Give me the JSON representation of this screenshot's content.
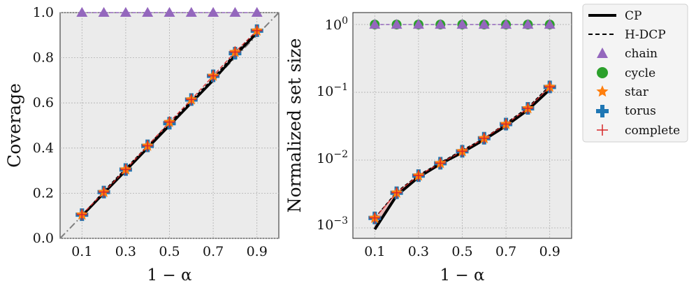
{
  "chart_data": [
    {
      "type": "line",
      "panel": "left",
      "xlabel": "1 − α",
      "ylabel": "Coverage",
      "xlim": [
        0.0,
        1.0
      ],
      "ylim": [
        0.0,
        1.0
      ],
      "xticks": [
        "0.1",
        "0.3",
        "0.5",
        "0.7",
        "0.9"
      ],
      "yticks": [
        "0.0",
        "0.2",
        "0.4",
        "0.6",
        "0.8",
        "1.0"
      ],
      "grid": true,
      "diagonal_reference": true,
      "x": [
        0.1,
        0.2,
        0.3,
        0.4,
        0.5,
        0.6,
        0.7,
        0.8,
        0.9
      ],
      "series": [
        {
          "name": "CP (chain)",
          "values": [
            1,
            1,
            1,
            1,
            1,
            1,
            1,
            1,
            1
          ]
        },
        {
          "name": "CP",
          "values": [
            0.1,
            0.2,
            0.3,
            0.4,
            0.5,
            0.6,
            0.7,
            0.81,
            0.91
          ]
        },
        {
          "name": "H-DCP",
          "values": [
            0.1,
            0.21,
            0.31,
            0.41,
            0.51,
            0.61,
            0.71,
            0.82,
            0.92
          ]
        },
        {
          "name": "chain",
          "values": [
            1,
            1,
            1,
            1,
            1,
            1,
            1,
            1,
            1
          ]
        },
        {
          "name": "star",
          "values": [
            0.105,
            0.205,
            0.305,
            0.41,
            0.515,
            0.615,
            0.72,
            0.825,
            0.92
          ]
        },
        {
          "name": "torus",
          "values": [
            0.105,
            0.205,
            0.305,
            0.41,
            0.51,
            0.615,
            0.72,
            0.82,
            0.92
          ]
        },
        {
          "name": "complete",
          "values": [
            0.105,
            0.205,
            0.305,
            0.41,
            0.515,
            0.615,
            0.72,
            0.825,
            0.92
          ]
        }
      ]
    },
    {
      "type": "line",
      "panel": "right",
      "xlabel": "1 − α",
      "ylabel": "Normalized set size",
      "yscale": "log",
      "xlim": [
        0.0,
        1.0
      ],
      "ylim": [
        0.0007,
        1.5
      ],
      "xticks": [
        "0.1",
        "0.3",
        "0.5",
        "0.7",
        "0.9"
      ],
      "yticks": [
        "10^0",
        "10^-1",
        "10^-2",
        "10^-3"
      ],
      "grid": true,
      "x": [
        0.1,
        0.2,
        0.3,
        0.4,
        0.5,
        0.6,
        0.7,
        0.8,
        0.9
      ],
      "series": [
        {
          "name": "CP",
          "values": [
            0.00095,
            0.003,
            0.0056,
            0.0088,
            0.013,
            0.02,
            0.032,
            0.055,
            0.11
          ]
        },
        {
          "name": "H-DCP",
          "values": [
            0.0014,
            0.0034,
            0.006,
            0.0092,
            0.014,
            0.021,
            0.035,
            0.06,
            0.125
          ]
        },
        {
          "name": "chain",
          "values": [
            1,
            1,
            1,
            1,
            1,
            1,
            1,
            1,
            1
          ]
        },
        {
          "name": "cycle",
          "values": [
            1,
            1,
            1,
            1,
            1,
            1,
            1,
            1,
            1
          ]
        },
        {
          "name": "star",
          "values": [
            0.0014,
            0.0033,
            0.0059,
            0.009,
            0.0135,
            0.021,
            0.034,
            0.058,
            0.12
          ]
        },
        {
          "name": "torus",
          "values": [
            0.0014,
            0.0033,
            0.0059,
            0.009,
            0.0135,
            0.021,
            0.034,
            0.058,
            0.12
          ]
        },
        {
          "name": "complete",
          "values": [
            0.0014,
            0.0033,
            0.0059,
            0.009,
            0.0135,
            0.021,
            0.034,
            0.058,
            0.12
          ]
        }
      ]
    }
  ],
  "legend": {
    "placement": "right",
    "entries": [
      {
        "label": "CP",
        "style": "line-solid"
      },
      {
        "label": "H-DCP",
        "style": "line-dashed"
      },
      {
        "label": "chain",
        "style": "triangle"
      },
      {
        "label": "cycle",
        "style": "circle"
      },
      {
        "label": "star",
        "style": "star"
      },
      {
        "label": "torus",
        "style": "plus-thick"
      },
      {
        "label": "complete",
        "style": "plus-thin"
      }
    ]
  },
  "colors": {
    "chain": "#9467bd",
    "cycle": "#2ca02c",
    "star": "#ff7f0e",
    "torus": "#1f77b4",
    "complete": "#d62728",
    "cp": "#000000",
    "panel_bg": "#ebebeb",
    "grid": "#b0b0b0",
    "diagonal": "#808080"
  }
}
